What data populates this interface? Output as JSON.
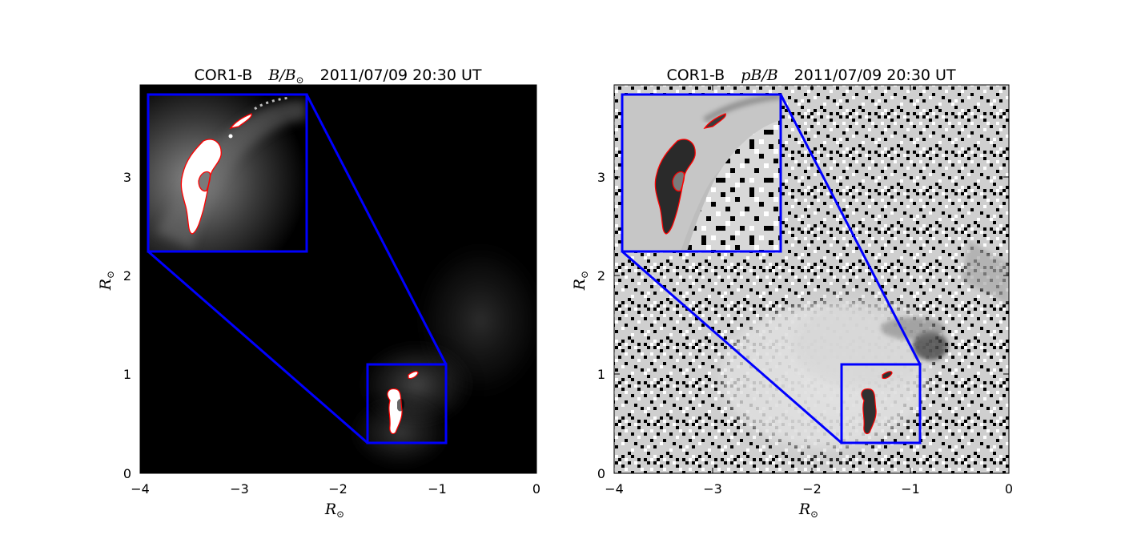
{
  "panels": [
    {
      "id": "left",
      "title_instrument": "COR1-B",
      "title_quantity": "B/B",
      "title_quantity_sub": "⊙",
      "title_date": "2011/07/09 20:30 UT",
      "xlabel": "R",
      "xlabel_sub": "⊙",
      "ylabel": "R",
      "ylabel_sub": "⊙",
      "x_ticks": [
        "−4",
        "−3",
        "−2",
        "−1",
        "0"
      ],
      "y_ticks": [
        "0",
        "1",
        "2",
        "3"
      ],
      "xlim": [
        -4,
        0
      ],
      "ylim": [
        0,
        3.9
      ]
    },
    {
      "id": "right",
      "title_instrument": "COR1-B",
      "title_quantity": "pB/B",
      "title_date": "2011/07/09 20:30 UT",
      "xlabel": "R",
      "xlabel_sub": "⊙",
      "ylabel": "R",
      "ylabel_sub": "⊙",
      "x_ticks": [
        "−4",
        "−3",
        "−2",
        "−1",
        "0"
      ],
      "y_ticks": [
        "0",
        "1",
        "2",
        "3"
      ],
      "xlim": [
        -4,
        0
      ],
      "ylim": [
        0,
        3.9
      ]
    }
  ],
  "zoom_box": {
    "x": [
      -1.7,
      -0.9
    ],
    "y": [
      0.3,
      1.1
    ],
    "inset_x": [
      -3.92,
      -2.32
    ],
    "inset_y": [
      2.25,
      3.85
    ]
  },
  "colors": {
    "zoom_box": "#0000ff",
    "contour": "#ff0000",
    "left_background": "#000000",
    "right_background": "#808080"
  }
}
